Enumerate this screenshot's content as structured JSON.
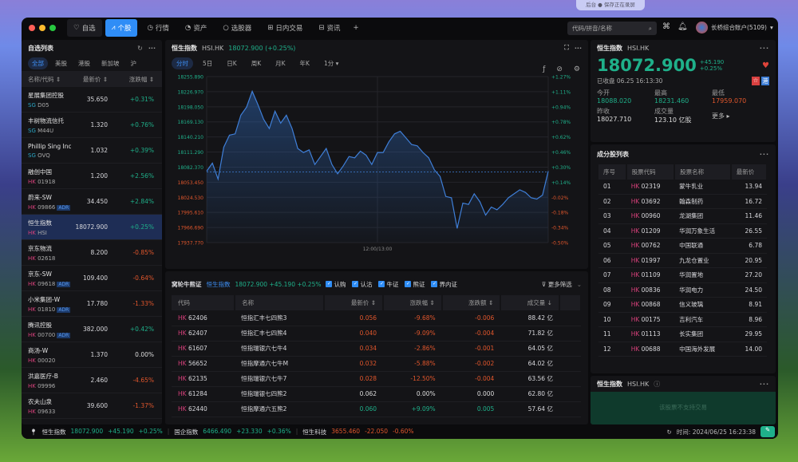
{
  "notification": {
    "text": "后台 ● 保存正在录屏"
  },
  "tabs": [
    {
      "label": "自选",
      "icon": "heart-icon"
    },
    {
      "label": "个股",
      "icon": "chart-icon"
    },
    {
      "label": "行情",
      "icon": "clock-icon"
    },
    {
      "label": "资产",
      "icon": "pie-icon"
    },
    {
      "label": "选股器",
      "icon": "circle-icon"
    },
    {
      "label": "日内交易",
      "icon": "grid-icon"
    },
    {
      "label": "资讯",
      "icon": "news-icon"
    }
  ],
  "add_tab": "+",
  "search": {
    "placeholder": "代码/拼音/名称"
  },
  "account": {
    "label": "长桥综合账户(5109)"
  },
  "watchlist": {
    "title": "自选列表",
    "filters": [
      "全部",
      "美股",
      "港股",
      "新加坡",
      "沪"
    ],
    "active_filter": 0,
    "columns": [
      "名称/代码 ⇕",
      "最新价 ⇕",
      "涨跌幅 ⇕"
    ],
    "rows": [
      {
        "name": "星展集团控股",
        "market": "SG",
        "code": "D05",
        "adr": false,
        "price": "35.650",
        "change": "+0.31%",
        "dir": "up"
      },
      {
        "name": "丰树物流信托",
        "market": "SG",
        "code": "M44U",
        "adr": false,
        "price": "1.320",
        "change": "+0.76%",
        "dir": "up"
      },
      {
        "name": "Phillip Sing Inc",
        "market": "SG",
        "code": "OVQ",
        "adr": false,
        "price": "1.032",
        "change": "+0.39%",
        "dir": "up"
      },
      {
        "name": "融创中国",
        "market": "HK",
        "code": "01918",
        "adr": false,
        "price": "1.200",
        "change": "+2.56%",
        "dir": "up"
      },
      {
        "name": "蔚来-SW",
        "market": "HK",
        "code": "09866",
        "adr": true,
        "price": "34.450",
        "change": "+2.84%",
        "dir": "up"
      },
      {
        "name": "恒生指数",
        "market": "HK",
        "code": "HSI",
        "adr": false,
        "price": "18072.900",
        "change": "+0.25%",
        "dir": "up",
        "selected": true
      },
      {
        "name": "京东物流",
        "market": "HK",
        "code": "02618",
        "adr": false,
        "price": "8.200",
        "change": "-0.85%",
        "dir": "dn"
      },
      {
        "name": "京东-SW",
        "market": "HK",
        "code": "09618",
        "adr": true,
        "price": "109.400",
        "change": "-0.64%",
        "dir": "dn"
      },
      {
        "name": "小米集团-W",
        "market": "HK",
        "code": "01810",
        "adr": true,
        "price": "17.780",
        "change": "-1.33%",
        "dir": "dn"
      },
      {
        "name": "腾讯控股",
        "market": "HK",
        "code": "00700",
        "adr": true,
        "price": "382.000",
        "change": "+0.42%",
        "dir": "up"
      },
      {
        "name": "商汤-W",
        "market": "HK",
        "code": "00020",
        "adr": false,
        "price": "1.370",
        "change": "0.00%",
        "dir": "flat"
      },
      {
        "name": "洪嘉医疗-B",
        "market": "HK",
        "code": "09996",
        "adr": false,
        "price": "2.460",
        "change": "-4.65%",
        "dir": "dn"
      },
      {
        "name": "农夫山泉",
        "market": "HK",
        "code": "09633",
        "adr": false,
        "price": "39.600",
        "change": "-1.37%",
        "dir": "dn"
      }
    ],
    "adr_label": "ADR"
  },
  "chart_panel": {
    "name": "恒生指数",
    "symbol": "HSI.HK",
    "quote": "18072.900 (+0.25%)",
    "periods": [
      "分时",
      "5日",
      "日K",
      "周K",
      "月K",
      "年K",
      "1分 ▾"
    ],
    "active_period": 0
  },
  "chart_data": {
    "type": "line",
    "x_tick_labels": [
      "12:00/13:00"
    ],
    "y_left_ticks": [
      "18255.890",
      "18226.970",
      "18198.050",
      "18169.130",
      "18140.210",
      "18111.290",
      "18082.370",
      "18053.450",
      "18024.530",
      "17995.610",
      "17966.690",
      "17937.770"
    ],
    "y_right_ticks": [
      "+1.27%",
      "+1.11%",
      "+0.94%",
      "+0.78%",
      "+0.62%",
      "+0.46%",
      "+0.30%",
      "+0.14%",
      "-0.02%",
      "-0.18%",
      "-0.34%",
      "-0.50%"
    ],
    "ylim": [
      17937.77,
      18255.89
    ],
    "grid": true,
    "line_color": "#3f7fd8",
    "values": [
      18074.7,
      18090.0,
      18059.4,
      18120.6,
      18143.6,
      18146.1,
      18181.9,
      18197.2,
      18227.8,
      18202.3,
      18174.2,
      18156.4,
      18189.5,
      18166.6,
      18181.9,
      18156.4,
      18118.1,
      18110.4,
      18115.5,
      18087.4,
      18102.7,
      18118.1,
      18087.4,
      18069.6,
      18084.9,
      18102.7,
      18100.2,
      18113.0,
      18105.3,
      18087.4,
      18110.4,
      18110.4,
      18130.8,
      18146.1,
      18151.2,
      18138.5,
      18125.7,
      18123.2,
      18110.4,
      18100.2,
      18077.2,
      18064.5,
      18026.2,
      18023.6,
      17964.9,
      18013.4,
      18010.9,
      18031.3,
      18016.0,
      17990.4,
      18005.8,
      18000.6,
      18010.9,
      18023.6,
      18031.3,
      18038.9,
      18033.9,
      18023.6,
      18021.1,
      18028.7,
      18074.7
    ],
    "current": 18072.9
  },
  "warrants": {
    "title": "窝轮牛熊证",
    "underlying": "恒生指数",
    "quote": "18072.900 +45.190 +0.25%",
    "filters": [
      "认购",
      "认沽",
      "牛证",
      "熊证",
      "界内证"
    ],
    "more_filter": "更多筛选",
    "columns": [
      "代码",
      "名称",
      "最新价 ⇕",
      "涨跌幅 ⇕",
      "涨跌额 ⇕",
      "成交量 ↓"
    ],
    "rows": [
      {
        "code": "62406",
        "name": "恒指汇丰七四熊3",
        "price": "0.056",
        "pct": "-9.68%",
        "amt": "-0.006",
        "vol": "88.42 亿",
        "dir": "dn"
      },
      {
        "code": "62407",
        "name": "恒指汇丰七四熊4",
        "price": "0.040",
        "pct": "-9.09%",
        "amt": "-0.004",
        "vol": "71.82 亿",
        "dir": "dn"
      },
      {
        "code": "61607",
        "name": "恒指瑞银六七牛4",
        "price": "0.034",
        "pct": "-2.86%",
        "amt": "-0.001",
        "vol": "64.05 亿",
        "dir": "dn"
      },
      {
        "code": "56652",
        "name": "恒指摩通六七牛M",
        "price": "0.032",
        "pct": "-5.88%",
        "amt": "-0.002",
        "vol": "64.02 亿",
        "dir": "dn"
      },
      {
        "code": "62135",
        "name": "恒指瑞银六七牛7",
        "price": "0.028",
        "pct": "-12.50%",
        "amt": "-0.004",
        "vol": "63.56 亿",
        "dir": "dn"
      },
      {
        "code": "61284",
        "name": "恒指瑞银七四熊2",
        "price": "0.062",
        "pct": "0.00%",
        "amt": "0.000",
        "vol": "62.80 亿",
        "dir": "flat"
      },
      {
        "code": "62440",
        "name": "恒指摩通六五熊2",
        "price": "0.060",
        "pct": "+9.09%",
        "amt": "0.005",
        "vol": "57.64 亿",
        "dir": "up"
      }
    ]
  },
  "quote": {
    "name": "恒生指数",
    "symbol": "HSI.HK",
    "price": "18072.900",
    "change": "+45.190",
    "pct": "+0.25%",
    "status": "已收盘 06.25 16:13:30",
    "fields": [
      {
        "label": "今开",
        "value": "18088.020",
        "dir": "up"
      },
      {
        "label": "最高",
        "value": "18231.460",
        "dir": "up"
      },
      {
        "label": "最低",
        "value": "17959.070",
        "dir": "dn"
      },
      {
        "label": "昨收",
        "value": "18027.710",
        "dir": "flat"
      },
      {
        "label": "成交量",
        "value": "123.10 亿股",
        "dir": "flat"
      }
    ],
    "more": "更多 ▸"
  },
  "constituents": {
    "title": "成分股列表",
    "columns": [
      "序号",
      "股票代码",
      "股票名称",
      "最新价"
    ],
    "rows": [
      [
        "01",
        "02319",
        "蒙牛乳业",
        "13.94"
      ],
      [
        "02",
        "03692",
        "翰森制药",
        "16.72"
      ],
      [
        "03",
        "00960",
        "龙湖集团",
        "11.46"
      ],
      [
        "04",
        "01209",
        "华润万象生活",
        "26.55"
      ],
      [
        "05",
        "00762",
        "中国联通",
        "6.78"
      ],
      [
        "06",
        "01997",
        "九龙仓置业",
        "20.95"
      ],
      [
        "07",
        "01109",
        "华润置地",
        "27.20"
      ],
      [
        "08",
        "00836",
        "华润电力",
        "24.50"
      ],
      [
        "09",
        "00868",
        "信义玻璃",
        "8.91"
      ],
      [
        "10",
        "00175",
        "吉利汽车",
        "8.96"
      ],
      [
        "11",
        "01113",
        "长实集团",
        "29.95"
      ],
      [
        "12",
        "00688",
        "中国海外发展",
        "14.00"
      ]
    ]
  },
  "trade_panel": {
    "name": "恒生指数",
    "symbol": "HSI.HK",
    "message": "该股票不支持交易"
  },
  "status": {
    "indices": [
      {
        "name": "恒生指数",
        "price": "18072.900",
        "chg": "+45.190",
        "pct": "+0.25%",
        "dir": "up"
      },
      {
        "name": "国企指数",
        "price": "6466.490",
        "chg": "+23.330",
        "pct": "+0.36%",
        "dir": "up"
      },
      {
        "name": "恒生科技",
        "price": "3655.460",
        "chg": "-22.050",
        "pct": "-0.60%",
        "dir": "dn"
      }
    ],
    "time": "时间: 2024/06/25 16:23:38"
  },
  "colors": {
    "up": "#1fb08a",
    "down": "#e0562c",
    "accent": "#2f8df6"
  }
}
